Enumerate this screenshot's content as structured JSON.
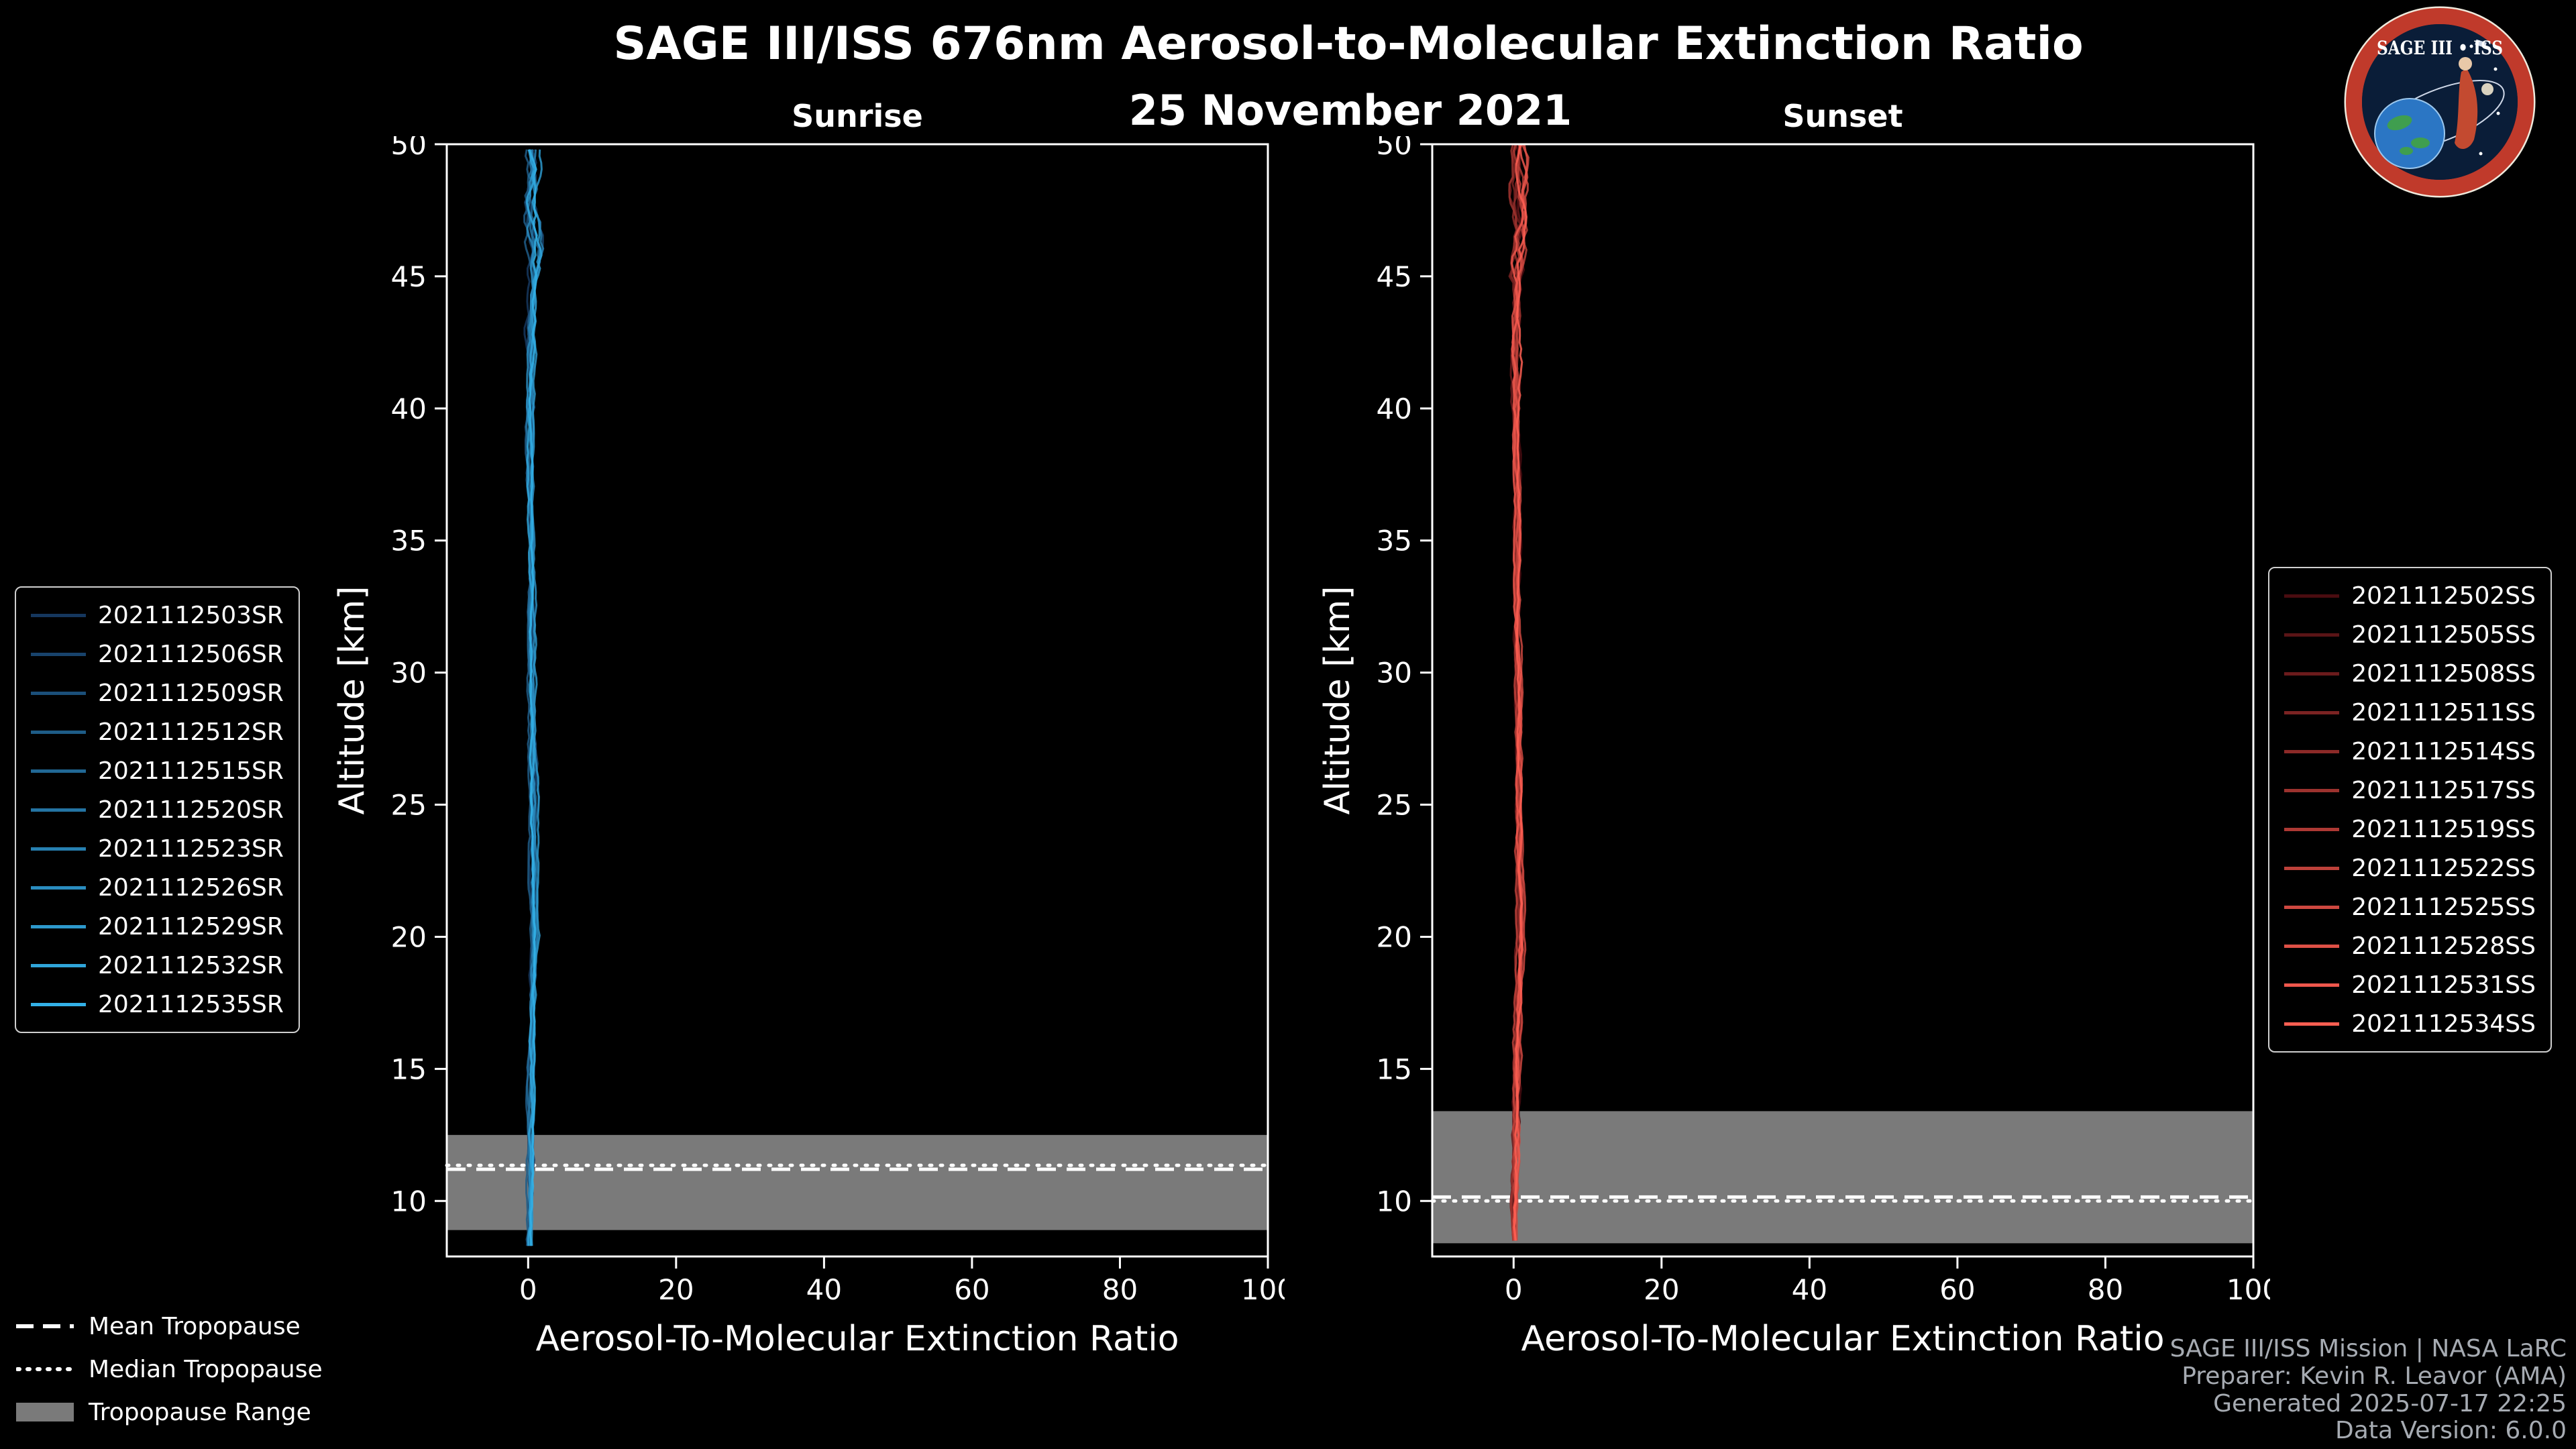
{
  "header": {
    "title": "SAGE III/ISS 676nm Aerosol-to-Molecular Extinction Ratio",
    "date": "25 November 2021"
  },
  "logo": {
    "text": "SAGE III • ISS"
  },
  "tropopause_legend": {
    "mean_label": "Mean Tropopause",
    "median_label": "Median Tropopause",
    "range_label": "Tropopause Range"
  },
  "credits": [
    "SAGE III/ISS Mission | NASA LaRC",
    "Preparer: Kevin R. Leavor (AMA)",
    "Generated 2025-07-17 22:25",
    "Data Version: 6.0.0"
  ],
  "chart_data": [
    {
      "id": "sunrise",
      "type": "line",
      "title": "Sunrise",
      "xlabel": "Aerosol-To-Molecular Extinction Ratio",
      "ylabel": "Altitude [km]",
      "xlim": [
        -11,
        100
      ],
      "ylim": [
        7.9,
        50
      ],
      "xticks": [
        0,
        20,
        40,
        60,
        80,
        100
      ],
      "yticks": [
        10,
        15,
        20,
        25,
        30,
        35,
        40,
        45,
        50
      ],
      "grid": false,
      "legend_position": "outside-left",
      "tropopause": {
        "mean_km": 11.2,
        "median_km": 11.35,
        "range_km": [
          8.9,
          12.5
        ]
      },
      "base_profile": {
        "altitude_km": [
          8.3,
          10,
          12,
          14,
          16,
          18,
          20,
          22,
          25,
          28,
          31,
          34,
          37,
          40,
          43,
          45,
          46,
          47,
          48,
          49,
          50
        ],
        "ratio": [
          0.2,
          0.4,
          0.5,
          0.4,
          0.5,
          0.6,
          0.9,
          0.7,
          0.8,
          0.6,
          0.5,
          0.5,
          0.4,
          0.3,
          0.4,
          0.8,
          1.0,
          0.6,
          0.4,
          0.5,
          0.3
        ]
      },
      "noise_amplitude": 0.5,
      "series": [
        {
          "name": "2021112503SR",
          "color": "#15375e"
        },
        {
          "name": "2021112506SR",
          "color": "#18436c"
        },
        {
          "name": "2021112509SR",
          "color": "#1b4f7a"
        },
        {
          "name": "2021112512SR",
          "color": "#1e5c87"
        },
        {
          "name": "2021112515SR",
          "color": "#216895"
        },
        {
          "name": "2021112520SR",
          "color": "#2474a3"
        },
        {
          "name": "2021112523SR",
          "color": "#2780b1"
        },
        {
          "name": "2021112526SR",
          "color": "#2a8cbf"
        },
        {
          "name": "2021112529SR",
          "color": "#2d99cc"
        },
        {
          "name": "2021112532SR",
          "color": "#30a5da"
        },
        {
          "name": "2021112535SR",
          "color": "#33b1e8"
        }
      ]
    },
    {
      "id": "sunset",
      "type": "line",
      "title": "Sunset",
      "xlabel": "Aerosol-To-Molecular Extinction Ratio",
      "ylabel": "Altitude [km]",
      "xlim": [
        -11,
        100
      ],
      "ylim": [
        7.9,
        50
      ],
      "xticks": [
        0,
        20,
        40,
        60,
        80,
        100
      ],
      "yticks": [
        10,
        15,
        20,
        25,
        30,
        35,
        40,
        45,
        50
      ],
      "grid": false,
      "legend_position": "outside-right",
      "tropopause": {
        "mean_km": 10.15,
        "median_km": 10.0,
        "range_km": [
          8.4,
          13.4
        ]
      },
      "base_profile": {
        "altitude_km": [
          8.5,
          10,
          12,
          14,
          16,
          18,
          20,
          22,
          25,
          28,
          31,
          34,
          37,
          40,
          43,
          45,
          46,
          47,
          48,
          49,
          50
        ],
        "ratio": [
          0.2,
          0.3,
          0.4,
          0.4,
          0.5,
          0.7,
          1.0,
          0.8,
          0.7,
          0.6,
          0.5,
          0.4,
          0.4,
          0.3,
          0.4,
          0.6,
          0.9,
          1.1,
          0.7,
          0.8,
          0.5
        ]
      },
      "noise_amplitude": 0.5,
      "series": [
        {
          "name": "2021112502SS",
          "color": "#4a0c10"
        },
        {
          "name": "2021112505SS",
          "color": "#5a1416"
        },
        {
          "name": "2021112508SS",
          "color": "#6b1b1c"
        },
        {
          "name": "2021112511SS",
          "color": "#7b2322"
        },
        {
          "name": "2021112514SS",
          "color": "#8c2a28"
        },
        {
          "name": "2021112517SS",
          "color": "#9c322e"
        },
        {
          "name": "2021112519SS",
          "color": "#ad3934"
        },
        {
          "name": "2021112522SS",
          "color": "#bd413a"
        },
        {
          "name": "2021112525SS",
          "color": "#ce4840"
        },
        {
          "name": "2021112528SS",
          "color": "#de5046"
        },
        {
          "name": "2021112531SS",
          "color": "#ef574c"
        },
        {
          "name": "2021112534SS",
          "color": "#ff5f52"
        }
      ]
    }
  ]
}
